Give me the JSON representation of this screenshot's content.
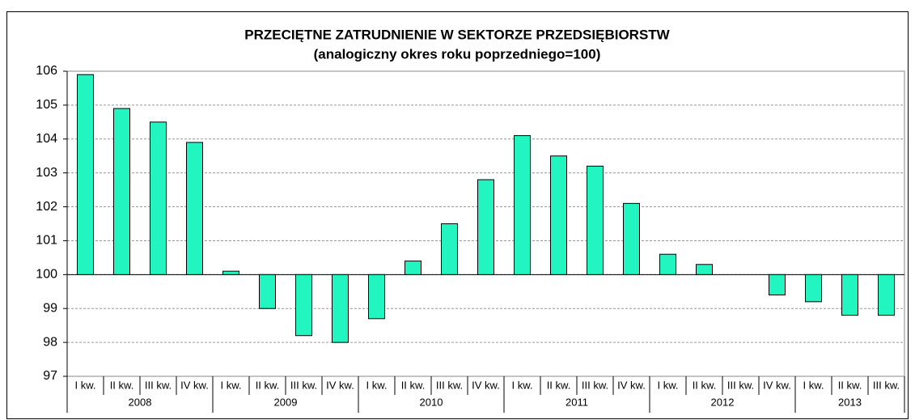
{
  "chart_data": {
    "type": "bar",
    "title": "PRZECIĘTNE ZATRUDNIENIE W SEKTORZE PRZEDSIĘBIORSTW",
    "subtitle": "(analogiczny okres roku poprzedniego=100)",
    "color": "#22f5c0",
    "xaxis_at": 100,
    "ylim": [
      97,
      106
    ],
    "yticks": [
      97,
      98,
      99,
      100,
      101,
      102,
      103,
      104,
      105,
      106
    ],
    "grid": true,
    "groups": [
      {
        "name": "2008",
        "categories": [
          "I kw.",
          "II kw.",
          "III kw.",
          "IV kw."
        ],
        "values": [
          105.9,
          104.9,
          104.5,
          103.9
        ]
      },
      {
        "name": "2009",
        "categories": [
          "I kw.",
          "II kw.",
          "III kw.",
          "IV kw."
        ],
        "values": [
          100.1,
          99.0,
          98.2,
          98.0
        ]
      },
      {
        "name": "2010",
        "categories": [
          "I kw.",
          "II kw.",
          "III kw.",
          "IV kw."
        ],
        "values": [
          98.7,
          100.4,
          101.5,
          102.8
        ]
      },
      {
        "name": "2011",
        "categories": [
          "I kw.",
          "II kw.",
          "III kw.",
          "IV kw."
        ],
        "values": [
          104.1,
          103.5,
          103.2,
          102.1
        ]
      },
      {
        "name": "2012",
        "categories": [
          "I kw.",
          "II kw.",
          "III kw.",
          "IV kw."
        ],
        "values": [
          100.6,
          100.3,
          100.0,
          99.4
        ]
      },
      {
        "name": "2013",
        "categories": [
          "I kw.",
          "II kw.",
          "III kw."
        ],
        "values": [
          99.2,
          98.8,
          98.8
        ]
      }
    ]
  }
}
